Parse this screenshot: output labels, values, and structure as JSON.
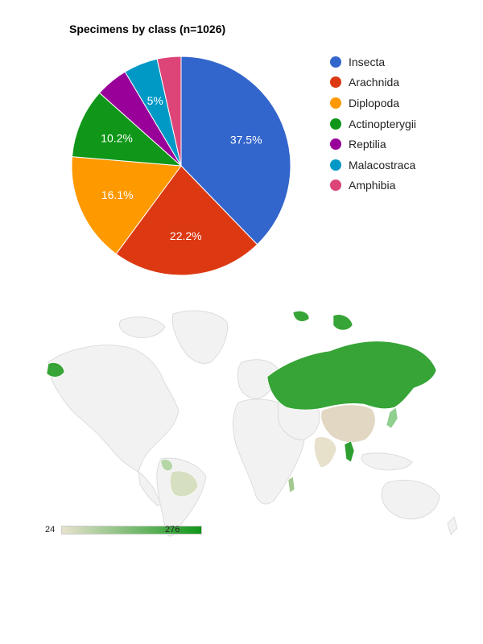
{
  "chart_data": [
    {
      "type": "pie",
      "title": "Specimens by class (n=1026)",
      "categories": [
        "Insecta",
        "Arachnida",
        "Diplopoda",
        "Actinopterygii",
        "Reptilia",
        "Malacostraca",
        "Amphibia"
      ],
      "values": [
        37.5,
        22.2,
        16.1,
        10.2,
        4.8,
        5.0,
        3.5
      ],
      "data_labels": [
        "37.5%",
        "22.2%",
        "16.1%",
        "10.2%",
        "",
        "5%",
        ""
      ],
      "colors": [
        "#3366cc",
        "#dc3912",
        "#ff9900",
        "#109618",
        "#990099",
        "#0099c6",
        "#dd4477"
      ],
      "legend_position": "right"
    },
    {
      "type": "heatmap",
      "subtype": "geo",
      "color_axis": {
        "min": 24,
        "max": 276,
        "min_label": "24",
        "max_label": "276",
        "min_color": "#e8e2cf",
        "max_color": "#109618"
      },
      "shaded_regions": [
        "Russia",
        "Alaska",
        "China",
        "Japan",
        "India",
        "Thailand",
        "Colombia",
        "Bolivia",
        "Brazil",
        "Madagascar"
      ]
    }
  ]
}
